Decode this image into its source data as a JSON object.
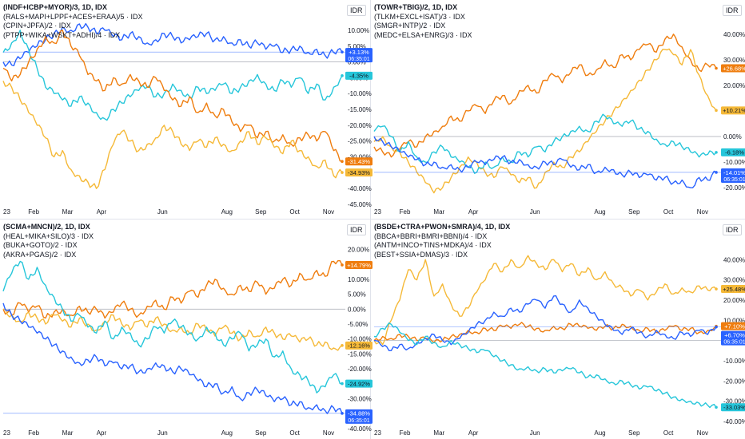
{
  "chart_data": [
    {
      "type": "line",
      "title": "(INDF+ICBP+MYOR)/3, 1D, IDX",
      "unit": "IDR",
      "legend": [
        "(RALS+MAPI+LPPF+ACES+ERAA)/5 · IDX",
        "(CPIN+JPFA)/2 · IDX",
        "(PTPP+WIKA+WSKT+ADHI)/4 · IDX"
      ],
      "y_ticks": [
        "10.00%",
        "5.00%",
        "0.00%",
        "-5.00%",
        "-10.00%",
        "-15.00%",
        "-20.00%",
        "-25.00%",
        "-30.00%",
        "-35.00%",
        "-40.00%",
        "-45.00%"
      ],
      "x_ticks": [
        "23",
        "Feb",
        "Mar",
        "Apr",
        "Jun",
        "Aug",
        "Sep",
        "Oct",
        "Nov"
      ],
      "ylim": [
        -45,
        12
      ],
      "baseline": 0,
      "series": [
        {
          "color": "#2962ff",
          "label": "+3.13%",
          "time": "06:35:01",
          "last": 3.13,
          "values": [
            0,
            -1,
            1,
            3,
            5,
            7,
            9,
            11,
            10,
            12,
            11,
            9,
            10,
            8,
            7,
            9,
            8,
            6,
            7,
            9,
            8,
            6,
            7,
            8,
            9,
            7,
            8,
            6,
            7,
            5,
            6,
            4,
            5,
            3,
            4,
            5,
            3,
            4,
            2,
            3,
            3.13
          ]
        },
        {
          "color": "#26c6da",
          "label": "-4.35%",
          "time": "",
          "last": -4.35,
          "values": [
            3,
            6,
            10,
            4,
            -2,
            -8,
            -10,
            -12,
            -14,
            -11,
            -13,
            -16,
            -18,
            -15,
            -13,
            -11,
            -9,
            -8,
            -11,
            -10,
            -7,
            -9,
            -11,
            -8,
            -10,
            -9,
            -7,
            -10,
            -8,
            -6,
            -4,
            -7,
            -9,
            -6,
            -8,
            -5,
            -10,
            -7,
            -12,
            -8,
            -4.35
          ]
        },
        {
          "color": "#ef7d0e",
          "label": "-31.43%",
          "time": "",
          "last": -31.43,
          "values": [
            -2,
            -6,
            -4,
            0,
            4,
            8,
            6,
            10,
            5,
            2,
            -4,
            -6,
            -9,
            -5,
            -7,
            -4,
            -6,
            -8,
            -5,
            -9,
            -12,
            -14,
            -11,
            -16,
            -13,
            -17,
            -15,
            -19,
            -22,
            -20,
            -24,
            -22,
            -25,
            -23,
            -26,
            -24,
            -23,
            -25,
            -22,
            -28,
            -31.43
          ]
        },
        {
          "color": "#f5b938",
          "label": "-34.93%",
          "time": "",
          "last": -34.93,
          "values": [
            -6,
            -8,
            -12,
            -16,
            -20,
            -24,
            -30,
            -28,
            -34,
            -36,
            -38,
            -40,
            -34,
            -26,
            -22,
            -25,
            -28,
            -26,
            -24,
            -20,
            -22,
            -26,
            -28,
            -25,
            -27,
            -24,
            -26,
            -28,
            -25,
            -22,
            -26,
            -24,
            -27,
            -29,
            -25,
            -28,
            -30,
            -33,
            -31,
            -36,
            -34.93
          ]
        }
      ]
    },
    {
      "type": "line",
      "title": "(TOWR+TBIG)/2, 1D, IDX",
      "unit": "IDR",
      "legend": [
        "(TLKM+EXCL+ISAT)/3 · IDX",
        "(SMGR+INTP)/2 · IDX",
        "(MEDC+ELSA+ENRG)/3 · IDX"
      ],
      "y_ticks": [
        "40.00%",
        "30.00%",
        "20.00%",
        "10.00%",
        "0.00%",
        "-10.00%",
        "-20.00%"
      ],
      "x_ticks": [
        "23",
        "Feb",
        "Mar",
        "Apr",
        "Jun",
        "Aug",
        "Sep",
        "Oct",
        "Nov"
      ],
      "ylim": [
        -24,
        44
      ],
      "baseline": 0,
      "series": [
        {
          "color": "#ef7d0e",
          "label": "+26.68%",
          "time": "",
          "last": 26.68,
          "values": [
            -4,
            -6,
            -8,
            -5,
            -2,
            -4,
            0,
            2,
            4,
            8,
            6,
            10,
            12,
            9,
            14,
            16,
            13,
            18,
            20,
            17,
            22,
            24,
            21,
            25,
            28,
            24,
            26,
            30,
            27,
            32,
            30,
            34,
            36,
            33,
            38,
            40,
            35,
            30,
            26,
            28,
            26.68
          ]
        },
        {
          "color": "#f5b938",
          "label": "+10.21%",
          "time": "",
          "last": 10.21,
          "values": [
            -2,
            0,
            -4,
            -6,
            -10,
            -14,
            -18,
            -22,
            -20,
            -16,
            -12,
            -8,
            -10,
            -14,
            -16,
            -12,
            -15,
            -18,
            -16,
            -20,
            -14,
            -10,
            -12,
            -8,
            -6,
            -2,
            2,
            6,
            10,
            14,
            18,
            22,
            26,
            30,
            34,
            32,
            28,
            34,
            24,
            16,
            10.21
          ]
        },
        {
          "color": "#26c6da",
          "label": "-6.18%",
          "time": "",
          "last": -6.18,
          "values": [
            2,
            4,
            0,
            -6,
            -2,
            -8,
            -10,
            -6,
            -4,
            -8,
            -10,
            -12,
            -14,
            -10,
            -12,
            -8,
            -10,
            -6,
            -8,
            -4,
            -6,
            -2,
            0,
            2,
            4,
            2,
            6,
            8,
            5,
            4,
            6,
            3,
            2,
            -1,
            -3,
            -2,
            -4,
            -6,
            -8,
            -7,
            -6.18
          ]
        },
        {
          "color": "#2962ff",
          "label": "-14.01%",
          "time": "06:35:01",
          "last": -14.01,
          "values": [
            0,
            -2,
            -4,
            -6,
            -8,
            -9,
            -11,
            -10,
            -12,
            -11,
            -13,
            -12,
            -10,
            -11,
            -9,
            -8,
            -10,
            -9,
            -11,
            -12,
            -10,
            -11,
            -9,
            -12,
            -13,
            -11,
            -14,
            -12,
            -13,
            -15,
            -14,
            -16,
            -15,
            -17,
            -16,
            -18,
            -17,
            -20,
            -16,
            -17,
            -14.01
          ]
        }
      ]
    },
    {
      "type": "line",
      "title": "(SCMA+MNCN)/2, 1D, IDX",
      "unit": "IDR",
      "legend": [
        "(HEAL+MIKA+SILO)/3 · IDX",
        "(BUKA+GOTO)/2 · IDX",
        "(AKRA+PGAS)/2 · IDX"
      ],
      "y_ticks": [
        "20.00%",
        "15.00%",
        "10.00%",
        "5.00%",
        "0.00%",
        "-5.00%",
        "-10.00%",
        "-15.00%",
        "-20.00%",
        "-25.00%",
        "-30.00%",
        "-35.00%",
        "-40.00%"
      ],
      "x_ticks": [
        "23",
        "Feb",
        "Mar",
        "Apr",
        "Jun",
        "Aug",
        "Sep",
        "Oct",
        "Nov"
      ],
      "ylim": [
        -40,
        22
      ],
      "baseline": 0,
      "series": [
        {
          "color": "#ef7d0e",
          "label": "+14.79%",
          "time": "",
          "last": 14.79,
          "values": [
            0,
            -2,
            2,
            -1,
            1,
            -3,
            -1,
            0,
            -2,
            1,
            -1,
            0,
            -3,
            -1,
            2,
            0,
            -2,
            1,
            3,
            0,
            4,
            2,
            6,
            4,
            8,
            10,
            7,
            5,
            8,
            6,
            9,
            5,
            7,
            10,
            8,
            12,
            10,
            13,
            11,
            16,
            14.79
          ]
        },
        {
          "color": "#f5b938",
          "label": "-12.16%",
          "time": "",
          "last": -12.16,
          "values": [
            0,
            -2,
            -4,
            -1,
            -3,
            -5,
            -2,
            -4,
            -6,
            -3,
            -5,
            -7,
            -4,
            -2,
            -5,
            -7,
            -4,
            -6,
            -3,
            -5,
            -7,
            -6,
            -8,
            -5,
            -7,
            -9,
            -6,
            -8,
            -10,
            -7,
            -9,
            -6,
            -8,
            -10,
            -9,
            -11,
            -10,
            -12,
            -11,
            -13,
            -12.16
          ]
        },
        {
          "color": "#26c6da",
          "label": "-24.92%",
          "time": "",
          "last": -24.92,
          "values": [
            6,
            12,
            16,
            10,
            14,
            8,
            4,
            0,
            -4,
            -2,
            -6,
            -8,
            -4,
            -10,
            -6,
            -8,
            -12,
            -10,
            -6,
            -8,
            -4,
            -6,
            -8,
            -10,
            -6,
            -8,
            -12,
            -10,
            -8,
            -14,
            -12,
            -10,
            -16,
            -14,
            -20,
            -22,
            -24,
            -28,
            -26,
            -22,
            -24.92
          ]
        },
        {
          "color": "#2962ff",
          "label": "-34.88%",
          "time": "06:35:01",
          "last": -34.88,
          "values": [
            2,
            -2,
            -4,
            -6,
            -8,
            -10,
            -12,
            -14,
            -16,
            -18,
            -17,
            -16,
            -19,
            -18,
            -20,
            -19,
            -21,
            -20,
            -18,
            -19,
            -21,
            -20,
            -22,
            -24,
            -26,
            -25,
            -28,
            -26,
            -30,
            -28,
            -27,
            -29,
            -31,
            -30,
            -32,
            -31,
            -33,
            -32,
            -34,
            -33,
            -34.88
          ]
        }
      ]
    },
    {
      "type": "line",
      "title": "(BSDE+CTRA+PWON+SMRA)/4, 1D, IDX",
      "unit": "IDR",
      "legend": [
        "(BBCA+BBRI+BMRI+BBNI)/4 · IDX",
        "(ANTM+INCO+TINS+MDKA)/4 · IDX",
        "(BEST+SSIA+DMAS)/3 · IDX"
      ],
      "y_ticks": [
        "40.00%",
        "30.00%",
        "20.00%",
        "10.00%",
        "0.00%",
        "-10.00%",
        "-20.00%",
        "-30.00%",
        "-40.00%"
      ],
      "x_ticks": [
        "23",
        "Feb",
        "Mar",
        "Apr",
        "Jun",
        "Aug",
        "Sep",
        "Oct",
        "Nov"
      ],
      "ylim": [
        -42,
        48
      ],
      "baseline": 0,
      "series": [
        {
          "color": "#f5b938",
          "label": "+25.48%",
          "time": "",
          "last": 25.48,
          "values": [
            0,
            -2,
            10,
            20,
            35,
            30,
            40,
            22,
            28,
            18,
            12,
            16,
            24,
            30,
            38,
            34,
            40,
            36,
            42,
            38,
            35,
            40,
            34,
            38,
            32,
            36,
            30,
            34,
            28,
            26,
            22,
            25,
            20,
            24,
            28,
            23,
            26,
            24,
            27,
            25,
            25.48
          ]
        },
        {
          "color": "#ef7d0e",
          "label": "+7.10%",
          "time": "",
          "last": 7.1,
          "values": [
            0,
            2,
            1,
            3,
            2,
            0,
            1,
            -1,
            0,
            2,
            3,
            5,
            4,
            6,
            5,
            7,
            6,
            8,
            7,
            6,
            5,
            7,
            6,
            8,
            7,
            6,
            5,
            7,
            6,
            8,
            7,
            5,
            6,
            4,
            5,
            7,
            5,
            6,
            4,
            5,
            7.1
          ]
        },
        {
          "color": "#2962ff",
          "label": "+6.70%",
          "time": "06:35:01",
          "last": 6.7,
          "values": [
            0,
            -3,
            -5,
            -2,
            -4,
            -1,
            1,
            3,
            0,
            -2,
            1,
            4,
            8,
            10,
            14,
            12,
            16,
            14,
            18,
            20,
            16,
            22,
            18,
            14,
            20,
            16,
            12,
            8,
            5,
            3,
            6,
            4,
            2,
            5,
            3,
            1,
            4,
            2,
            5,
            3,
            6.7
          ]
        },
        {
          "color": "#26c6da",
          "label": "-33.03%",
          "time": "",
          "last": -33.03,
          "values": [
            2,
            6,
            8,
            4,
            0,
            -2,
            2,
            -1,
            -3,
            0,
            -2,
            -4,
            -6,
            -5,
            -8,
            -10,
            -12,
            -14,
            -13,
            -15,
            -14,
            -16,
            -15,
            -14,
            -16,
            -18,
            -17,
            -19,
            -21,
            -20,
            -22,
            -24,
            -23,
            -25,
            -26,
            -28,
            -29,
            -30,
            -31,
            -32,
            -33.03
          ]
        }
      ]
    }
  ]
}
